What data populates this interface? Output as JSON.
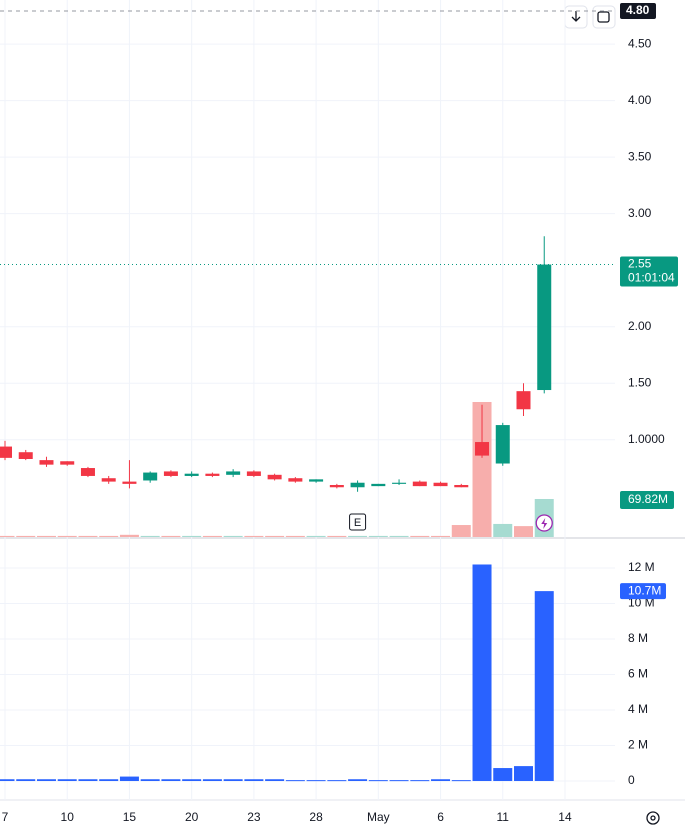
{
  "chart_data": [
    {
      "type": "candlestick",
      "categories": [
        "7",
        null,
        null,
        "10",
        null,
        null,
        "15",
        null,
        null,
        "20",
        null,
        null,
        "23",
        null,
        null,
        "28",
        null,
        null,
        "May",
        null,
        null,
        "6",
        null,
        null,
        "11",
        null,
        null,
        "14"
      ],
      "open": [
        0.94,
        0.89,
        0.82,
        0.81,
        0.75,
        0.66,
        0.63,
        0.64,
        0.72,
        0.68,
        0.7,
        0.69,
        0.72,
        0.69,
        0.66,
        0.63,
        0.6,
        0.58,
        0.59,
        0.61,
        0.63,
        0.62,
        0.6,
        0.98,
        0.79,
        1.43,
        1.44,
        null
      ],
      "high": [
        0.99,
        0.91,
        0.85,
        0.81,
        0.76,
        0.68,
        0.82,
        0.72,
        0.73,
        0.72,
        0.71,
        0.74,
        0.73,
        0.7,
        0.67,
        0.65,
        0.61,
        0.64,
        0.61,
        0.65,
        0.64,
        0.63,
        0.61,
        1.31,
        1.15,
        1.5,
        2.8,
        null
      ],
      "low": [
        0.82,
        0.82,
        0.76,
        0.77,
        0.67,
        0.61,
        0.57,
        0.62,
        0.67,
        0.67,
        0.67,
        0.67,
        0.67,
        0.64,
        0.62,
        0.62,
        0.57,
        0.54,
        0.59,
        0.6,
        0.59,
        0.59,
        0.58,
        0.84,
        0.77,
        1.21,
        1.41,
        null
      ],
      "close": [
        0.84,
        0.83,
        0.78,
        0.78,
        0.68,
        0.63,
        0.61,
        0.71,
        0.68,
        0.7,
        0.68,
        0.72,
        0.68,
        0.65,
        0.63,
        0.65,
        0.58,
        0.62,
        0.61,
        0.62,
        0.59,
        0.59,
        0.58,
        0.86,
        1.13,
        1.27,
        2.55,
        null
      ],
      "up_color": "#089981",
      "down_color": "#f23645",
      "volume_overlay": {
        "values": [
          2,
          2,
          2,
          2,
          2,
          2,
          4,
          2,
          2,
          2,
          2,
          2,
          2,
          2,
          2,
          2,
          2,
          2,
          2,
          2,
          2,
          2,
          22,
          248,
          24,
          20,
          69.82,
          null
        ],
        "up_color": "#a6dbd1",
        "down_color": "#f7aeac",
        "last_label": "69.82M"
      },
      "ylim": [
        0.14,
        4.89
      ],
      "yticks": [
        {
          "value": 4.5,
          "label": "4.50"
        },
        {
          "value": 4,
          "label": "4.00"
        },
        {
          "value": 3.5,
          "label": "3.50"
        },
        {
          "value": 3,
          "label": "3.00"
        },
        {
          "value": 2,
          "label": "2.00"
        },
        {
          "value": 1.5,
          "label": "1.50"
        },
        {
          "value": 1,
          "label": "1.0000"
        }
      ],
      "last_price": {
        "value": 2.55,
        "label": "2.55",
        "countdown": "01:01:04"
      },
      "top_label": {
        "value": 4.8,
        "label": "4.80"
      },
      "earnings_marker": "E",
      "grid": true
    },
    {
      "type": "bar",
      "values": [
        0.1,
        0.1,
        0.1,
        0.1,
        0.1,
        0.1,
        0.25,
        0.1,
        0.1,
        0.1,
        0.1,
        0.1,
        0.1,
        0.1,
        0.05,
        0.05,
        0.05,
        0.1,
        0.05,
        0.05,
        0.05,
        0.1,
        0.05,
        12.2,
        0.73,
        0.84,
        10.7,
        null
      ],
      "color": "#2962ff",
      "last_label": "10.7M",
      "ylim": [
        -1.07,
        13.58
      ],
      "yticks": [
        {
          "value": 12,
          "label": "12 M"
        },
        {
          "value": 10,
          "label": "10 M"
        },
        {
          "value": 8,
          "label": "8 M"
        },
        {
          "value": 6,
          "label": "6 M"
        },
        {
          "value": 4,
          "label": "4 M"
        },
        {
          "value": 2,
          "label": "2 M"
        },
        0
      ],
      "grid": true
    }
  ]
}
